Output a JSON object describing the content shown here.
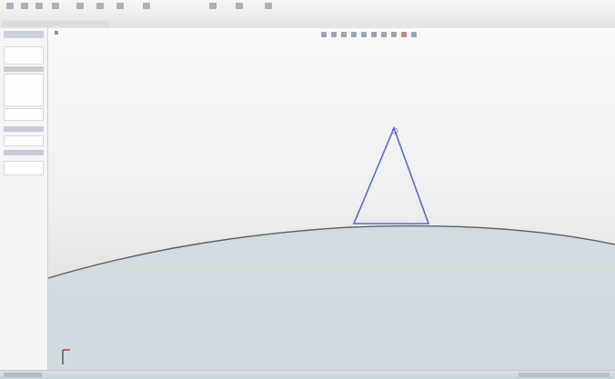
{
  "ribbon": {
    "tools": [
      {
        "name": "smart-dimension-tool",
        "label": ""
      },
      {
        "name": "line-tool",
        "label": ""
      },
      {
        "name": "circle-tool",
        "label": ""
      },
      {
        "name": "arc-tool",
        "label": ""
      },
      {
        "name": "trim-entities-tool",
        "label": ""
      },
      {
        "name": "convert-entities-tool",
        "label": ""
      },
      {
        "name": "offset-entities-tool",
        "label": ""
      },
      {
        "name": "mirror-entities-tool",
        "label": ""
      },
      {
        "name": "display-delete-relations-tool",
        "label": ""
      },
      {
        "name": "quick-snaps-tool",
        "label": ""
      },
      {
        "name": "rapid-sketch-tool",
        "label": ""
      }
    ]
  },
  "tabs": {
    "items": [
      {
        "label": ""
      },
      {
        "label": ""
      }
    ]
  },
  "sketch": {
    "triangle_color": "#5a66d8",
    "curve_color": "#55606a",
    "below_curve_color": "#cfd8de"
  },
  "colors": {
    "ribbon_bg": "#efefef",
    "panel_bg": "#f5f5f5",
    "graphics_bg": "#f1f1f1"
  }
}
